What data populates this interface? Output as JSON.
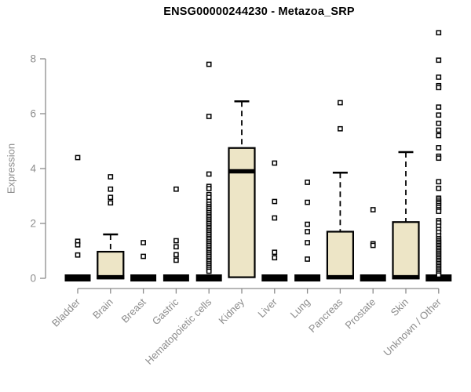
{
  "colors": {
    "box_fill": "#ede5c6",
    "box_stroke": "#000000",
    "axis": "#8c8c8c",
    "label": "#8c8c8c",
    "title": "#000000",
    "background": "#ffffff",
    "outlier_fill": "#ffffff"
  },
  "chart_data": {
    "type": "boxplot",
    "title": "ENSG00000244230 - Metazoa_SRP",
    "xlabel": "",
    "ylabel": "Expression",
    "ylim": [
      0,
      9
    ],
    "yticks": [
      0,
      2,
      4,
      6,
      8
    ],
    "grid": false,
    "legend": false,
    "categories": [
      "Bladder",
      "Brain",
      "Breast",
      "Gastric",
      "Hematopoietic cells",
      "Kidney",
      "Liver",
      "Lung",
      "Pancreas",
      "Prostate",
      "Skin",
      "Unknown / Other"
    ],
    "boxes": [
      {
        "category": "Bladder",
        "q1": 0,
        "median": 0,
        "q3": 0,
        "whisker_low": 0,
        "whisker_high": 0,
        "outliers": [
          4.4,
          1.35,
          1.22,
          0.85
        ]
      },
      {
        "category": "Brain",
        "q1": 0,
        "median": 0.04,
        "q3": 0.97,
        "whisker_low": 0,
        "whisker_high": 1.6,
        "outliers": [
          3.7,
          3.25,
          2.95,
          2.75
        ]
      },
      {
        "category": "Breast",
        "q1": 0,
        "median": 0,
        "q3": 0,
        "whisker_low": 0,
        "whisker_high": 0,
        "outliers": [
          1.3,
          0.8
        ]
      },
      {
        "category": "Gastric",
        "q1": 0,
        "median": 0,
        "q3": 0,
        "whisker_low": 0,
        "whisker_high": 0,
        "outliers": [
          3.25,
          1.37,
          1.15,
          0.86,
          0.66
        ]
      },
      {
        "category": "Hematopoietic cells",
        "q1": 0,
        "median": 0,
        "q3": 0,
        "whisker_low": 0,
        "whisker_high": 0,
        "outliers": [
          7.8,
          5.9,
          3.8,
          3.35,
          3.27,
          3.05,
          2.95,
          2.8,
          2.7,
          2.62,
          2.55,
          2.48,
          2.4,
          2.33,
          2.26,
          2.2,
          2.13,
          2.06,
          2.0,
          1.93,
          1.86,
          1.8,
          1.73,
          1.66,
          1.6,
          1.53,
          1.46,
          1.4,
          1.33,
          1.26,
          1.2,
          1.13,
          1.06,
          1.0,
          0.93,
          0.86,
          0.8,
          0.73,
          0.66,
          0.6,
          0.53,
          0.46,
          0.4,
          0.33,
          0.26
        ]
      },
      {
        "category": "Kidney",
        "q1": 0.04,
        "median": 3.9,
        "q3": 4.75,
        "whisker_low": 0.04,
        "whisker_high": 6.45,
        "outliers": []
      },
      {
        "category": "Liver",
        "q1": 0,
        "median": 0,
        "q3": 0,
        "whisker_low": 0,
        "whisker_high": 0,
        "outliers": [
          4.2,
          2.8,
          2.2,
          0.95,
          0.75
        ]
      },
      {
        "category": "Lung",
        "q1": 0,
        "median": 0,
        "q3": 0,
        "whisker_low": 0,
        "whisker_high": 0,
        "outliers": [
          3.5,
          2.77,
          1.97,
          1.7,
          1.3,
          0.7
        ]
      },
      {
        "category": "Pancreas",
        "q1": 0,
        "median": 0.04,
        "q3": 1.7,
        "whisker_low": 0,
        "whisker_high": 3.85,
        "outliers": [
          6.4,
          5.45
        ]
      },
      {
        "category": "Prostate",
        "q1": 0,
        "median": 0,
        "q3": 0,
        "whisker_low": 0,
        "whisker_high": 0,
        "outliers": [
          2.5,
          1.26,
          1.2
        ]
      },
      {
        "category": "Skin",
        "q1": 0,
        "median": 0.04,
        "q3": 2.05,
        "whisker_low": 0,
        "whisker_high": 4.6,
        "outliers": []
      },
      {
        "category": "Unknown / Other",
        "q1": 0,
        "median": 0,
        "q3": 0,
        "whisker_low": 0,
        "whisker_high": 0,
        "outliers": [
          8.95,
          7.95,
          7.33,
          7.02,
          6.95,
          6.24,
          5.95,
          5.65,
          5.4,
          5.2,
          4.76,
          4.45,
          4.38,
          3.52,
          3.28,
          2.92,
          2.85,
          2.78,
          2.72,
          2.65,
          2.58,
          2.5,
          2.44,
          2.1,
          2.02,
          1.9,
          1.78,
          1.68,
          1.55,
          1.45,
          1.38,
          1.32,
          1.26,
          1.2,
          1.14,
          1.08,
          1.02,
          0.96,
          0.9,
          0.84,
          0.78,
          0.72,
          0.66,
          0.6,
          0.54,
          0.48,
          0.42,
          0.36,
          0.3,
          0.24,
          0.18,
          0.12
        ]
      }
    ]
  }
}
